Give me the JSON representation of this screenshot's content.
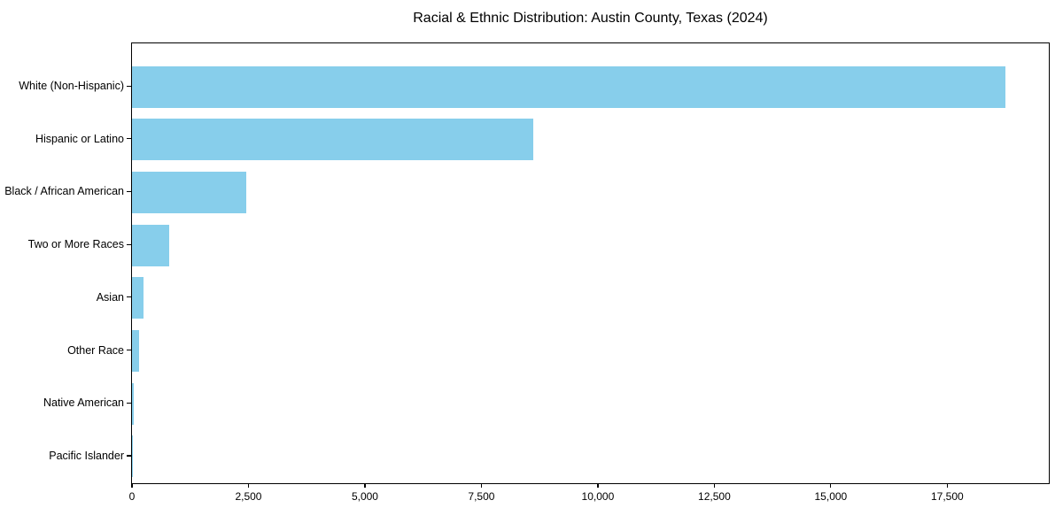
{
  "chart_data": {
    "type": "bar",
    "orientation": "horizontal",
    "title": "Racial & Ethnic Distribution: Austin County, Texas (2024)",
    "categories": [
      "White (Non-Hispanic)",
      "Hispanic or Latino",
      "Black / African American",
      "Two or More Races",
      "Asian",
      "Other Race",
      "Native American",
      "Pacific Islander"
    ],
    "values": [
      18740,
      8620,
      2460,
      800,
      240,
      150,
      30,
      10
    ],
    "xlabel": "",
    "ylabel": "",
    "xlim": [
      0,
      19680
    ],
    "x_ticks": [
      0,
      2500,
      5000,
      7500,
      10000,
      12500,
      15000,
      17500
    ],
    "x_tick_labels": [
      "0",
      "2,500",
      "5,000",
      "7,500",
      "10,000",
      "12,500",
      "15,000",
      "17,500"
    ],
    "grid": false,
    "bar_color": "#87CEEB",
    "frame_color": "#000000",
    "text_color": "#000000"
  }
}
